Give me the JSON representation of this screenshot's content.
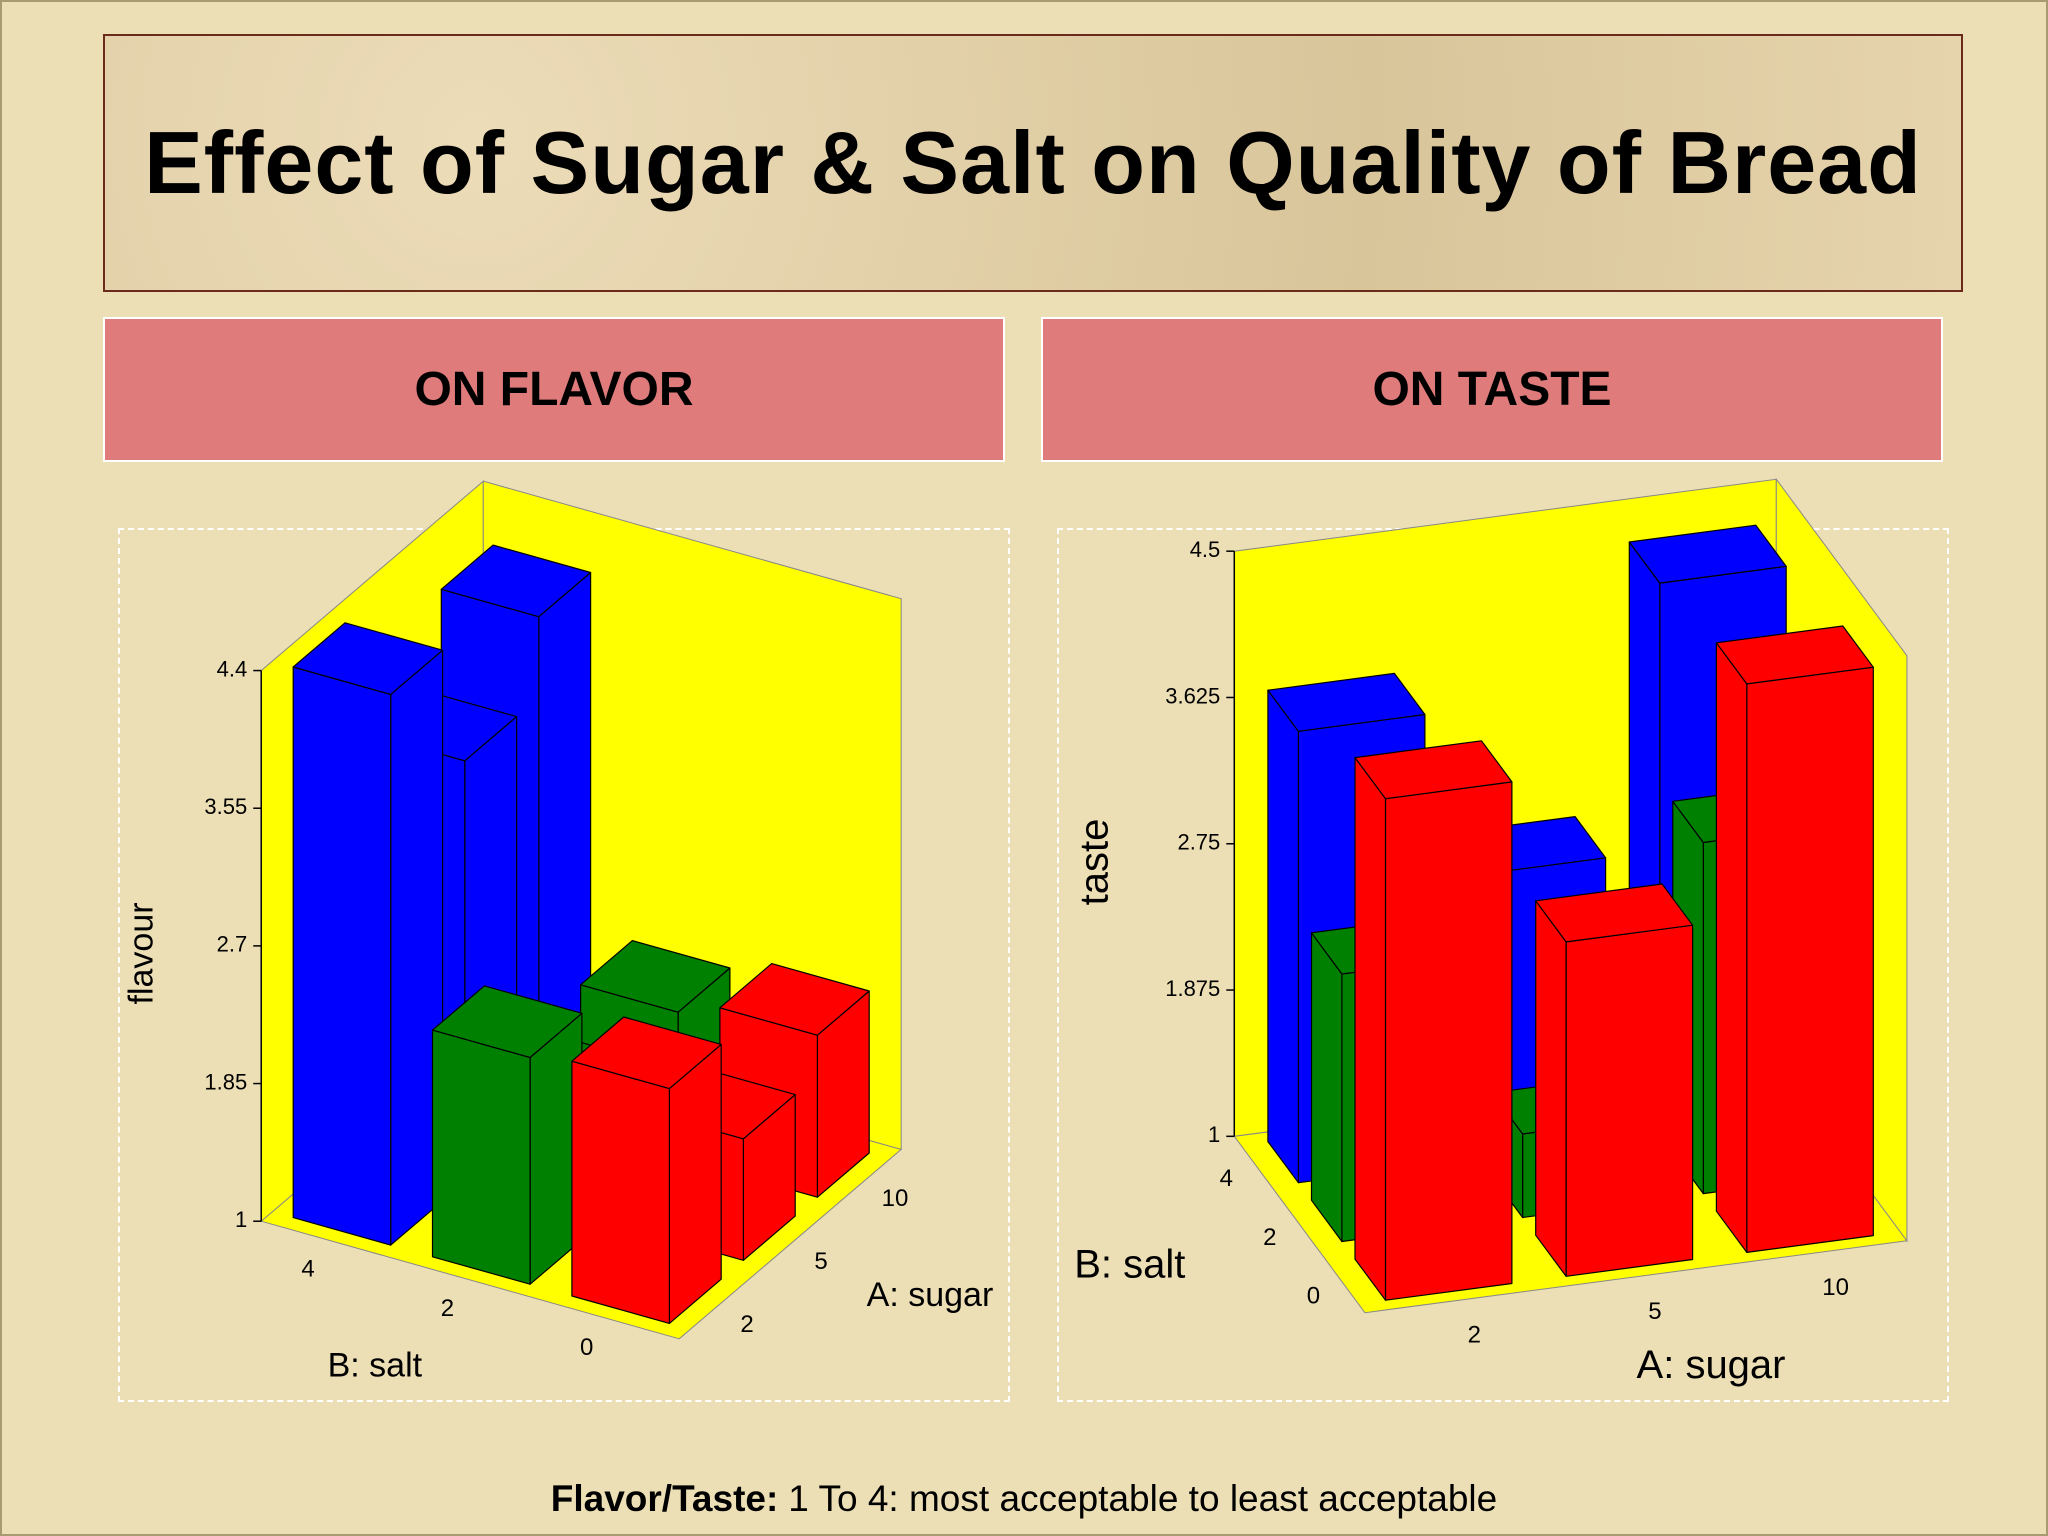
{
  "slide": {
    "title": "Effect of Sugar & Salt on Quality of Bread",
    "panels": [
      "ON FLAVOR",
      "ON TASTE"
    ],
    "footnote": {
      "label": "Flavor/Taste:",
      "text": "1 To 4: most acceptable to least acceptable"
    }
  },
  "chart_data": [
    {
      "type": "bar3d",
      "zlabel": "flavour",
      "ylabel": "B: salt",
      "xlabel": "A: sugar",
      "x": [
        2,
        5,
        10
      ],
      "y": [
        0,
        2,
        4
      ],
      "zlim": [
        1,
        4.4
      ],
      "zticks": [
        1,
        1.85,
        2.7,
        3.55,
        4.4
      ],
      "series": [
        {
          "color": "#ff0000",
          "values": [
            2.45,
            1.75,
            2.0
          ]
        },
        {
          "color": "#008000",
          "values": [
            2.4,
            1.7,
            1.9
          ]
        },
        {
          "color": "#0000ff",
          "values": [
            4.4,
            3.6,
            4.1
          ]
        }
      ]
    },
    {
      "type": "bar3d",
      "zlabel": "taste",
      "ylabel": "B: salt",
      "xlabel": "A: sugar",
      "x": [
        2,
        5,
        10
      ],
      "y": [
        0,
        2,
        4
      ],
      "zlim": [
        1,
        4.5
      ],
      "zticks": [
        1,
        1.875,
        2.75,
        3.625,
        4.5
      ],
      "series": [
        {
          "color": "#ff0000",
          "values": [
            4.0,
            3.0,
            4.4
          ]
        },
        {
          "color": "#008000",
          "values": [
            2.6,
            1.5,
            3.1
          ]
        },
        {
          "color": "#0000ff",
          "values": [
            3.7,
            2.7,
            4.3
          ]
        }
      ]
    }
  ]
}
